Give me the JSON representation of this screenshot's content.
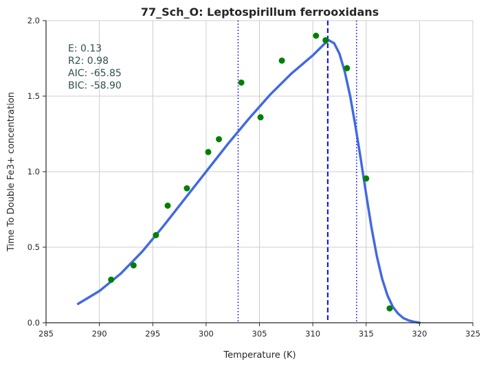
{
  "chart_data": {
    "type": "scatter",
    "title": "77_Sch_O: Leptospirillum ferrooxidans",
    "xlabel": "Temperature (K)",
    "ylabel": "Time To Double Fe3+ concentration",
    "xlim": [
      285,
      325
    ],
    "ylim": [
      0.0,
      2.0
    ],
    "x_ticks": [
      285,
      290,
      295,
      300,
      305,
      310,
      315,
      320,
      325
    ],
    "y_ticks": [
      0.0,
      0.5,
      1.0,
      1.5,
      2.0
    ],
    "x_tick_labels": [
      "285",
      "290",
      "295",
      "300",
      "305",
      "310",
      "315",
      "320",
      "325"
    ],
    "y_tick_labels": [
      "0.0",
      "0.5",
      "1.0",
      "1.5",
      "2.0"
    ],
    "grid": true,
    "annotation": [
      "E:  0.13",
      "R2:  0.98",
      "AIC: -65.85",
      "BIC: -58.90"
    ],
    "series": [
      {
        "type": "scatter",
        "color": "#008000",
        "x": [
          291.1,
          293.2,
          295.3,
          296.4,
          298.2,
          300.2,
          301.2,
          303.3,
          305.1,
          307.1,
          310.3,
          311.2,
          313.2,
          315.0,
          317.2
        ],
        "y": [
          0.285,
          0.38,
          0.58,
          0.775,
          0.89,
          1.13,
          1.215,
          1.59,
          1.36,
          1.735,
          1.9,
          1.87,
          1.685,
          0.955,
          0.095
        ]
      },
      {
        "type": "line",
        "color": "#4169e1",
        "x": [
          288,
          290,
          292,
          294,
          296,
          298,
          300,
          302,
          304,
          306,
          308,
          310,
          311,
          311.5,
          312,
          312.5,
          313,
          313.5,
          314,
          314.5,
          315,
          315.5,
          316,
          316.5,
          317,
          317.5,
          318,
          318.5,
          319,
          319.5,
          320
        ],
        "y": [
          0.125,
          0.21,
          0.325,
          0.47,
          0.64,
          0.82,
          1.0,
          1.18,
          1.35,
          1.51,
          1.65,
          1.77,
          1.84,
          1.87,
          1.85,
          1.78,
          1.66,
          1.5,
          1.3,
          1.08,
          0.85,
          0.63,
          0.44,
          0.29,
          0.18,
          0.105,
          0.06,
          0.03,
          0.015,
          0.006,
          0.0
        ]
      }
    ],
    "vlines": [
      {
        "x": 303.0,
        "style": "dotted",
        "color": "#0000ff"
      },
      {
        "x": 311.4,
        "style": "dashed",
        "color": "#0000ff"
      },
      {
        "x": 314.1,
        "style": "dotted",
        "color": "#0000ff"
      }
    ]
  }
}
